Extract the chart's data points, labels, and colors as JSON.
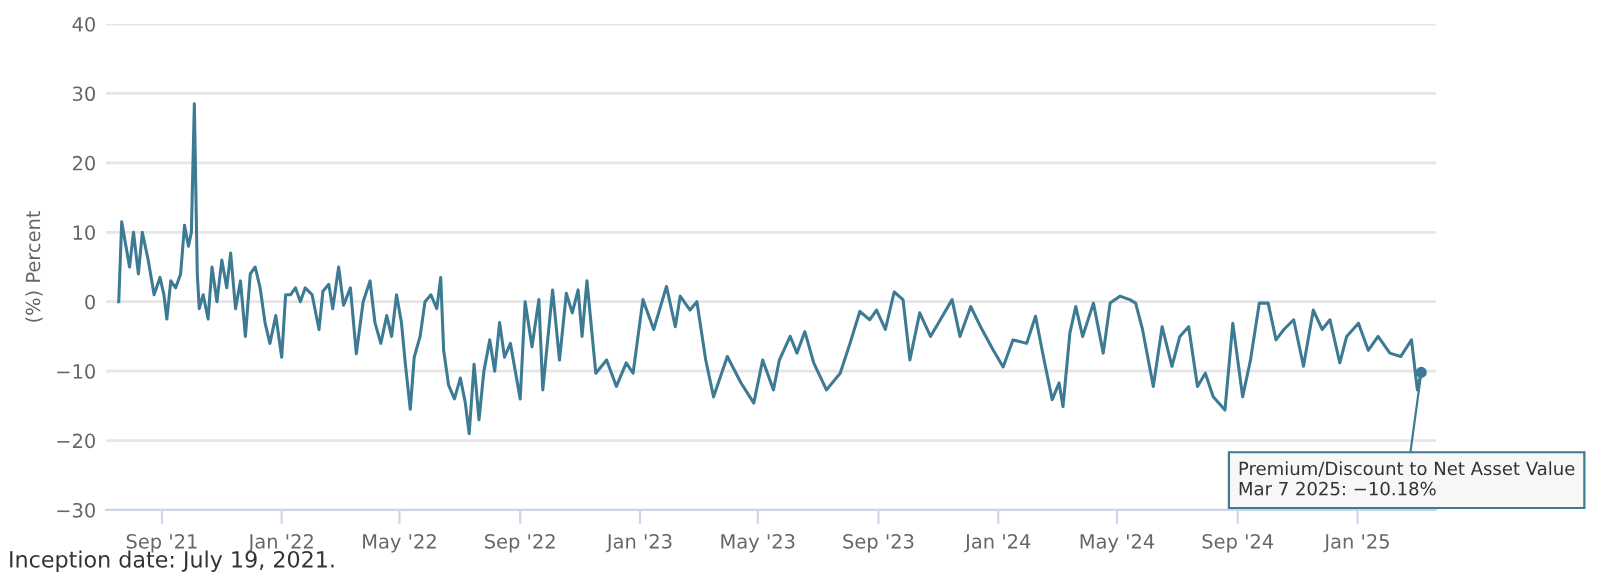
{
  "chart_data": {
    "type": "line",
    "ylabel": "(%) Percent",
    "annotations": [
      {
        "text": "Premium/Discount to Net Asset Value\nMar 7 2025: −10.18%",
        "x": "2025-03-07",
        "y": -10.18
      },
      "Inception date: July 19, 2021."
    ],
    "xlim": [
      "2021-07-06",
      "2025-03-22"
    ],
    "xticks": [
      {
        "value": "2021-09-01",
        "label": "Sep '21"
      },
      {
        "value": "2022-01-01",
        "label": "Jan '22"
      },
      {
        "value": "2022-05-01",
        "label": "May '22"
      },
      {
        "value": "2022-09-01",
        "label": "Sep '22"
      },
      {
        "value": "2023-01-01",
        "label": "Jan '23"
      },
      {
        "value": "2023-05-01",
        "label": "May '23"
      },
      {
        "value": "2023-09-01",
        "label": "Sep '23"
      },
      {
        "value": "2024-01-01",
        "label": "Jan '24"
      },
      {
        "value": "2024-05-01",
        "label": "May '24"
      },
      {
        "value": "2024-09-01",
        "label": "Sep '24"
      },
      {
        "value": "2025-01-01",
        "label": "Jan '25"
      }
    ],
    "ylim": [
      -30,
      40
    ],
    "yticks": [
      {
        "value": -30,
        "label": "−30"
      },
      {
        "value": -20,
        "label": "−20"
      },
      {
        "value": -10,
        "label": "−10"
      },
      0,
      10,
      20,
      30,
      40
    ],
    "grid": "y",
    "legend": false,
    "marker": "none",
    "line_style": "solid",
    "series": [
      {
        "color": "#3d7a94",
        "x": [
          "2021-07-19",
          "2021-07-22",
          "2021-07-30",
          "2021-08-03",
          "2021-08-08",
          "2021-08-12",
          "2021-08-18",
          "2021-08-24",
          "2021-08-30",
          "2021-09-03",
          "2021-09-06",
          "2021-09-10",
          "2021-09-15",
          "2021-09-20",
          "2021-09-24",
          "2021-09-28",
          "2021-10-01",
          "2021-10-04",
          "2021-10-07",
          "2021-10-09",
          "2021-10-13",
          "2021-10-18",
          "2021-10-22",
          "2021-10-27",
          "2021-11-01",
          "2021-11-06",
          "2021-11-10",
          "2021-11-15",
          "2021-11-20",
          "2021-11-25",
          "2021-11-30",
          "2021-12-05",
          "2021-12-10",
          "2021-12-15",
          "2021-12-20",
          "2021-12-26",
          "2022-01-01",
          "2022-01-05",
          "2022-01-10",
          "2022-01-15",
          "2022-01-20",
          "2022-01-25",
          "2022-02-01",
          "2022-02-08",
          "2022-02-12",
          "2022-02-18",
          "2022-02-22",
          "2022-02-28",
          "2022-03-05",
          "2022-03-12",
          "2022-03-18",
          "2022-03-25",
          "2022-04-01",
          "2022-04-06",
          "2022-04-12",
          "2022-04-18",
          "2022-04-23",
          "2022-04-28",
          "2022-05-03",
          "2022-05-07",
          "2022-05-12",
          "2022-05-16",
          "2022-05-22",
          "2022-05-27",
          "2022-06-02",
          "2022-06-08",
          "2022-06-12",
          "2022-06-15",
          "2022-06-20",
          "2022-06-26",
          "2022-07-02",
          "2022-07-07",
          "2022-07-11",
          "2022-07-16",
          "2022-07-21",
          "2022-07-26",
          "2022-08-01",
          "2022-08-06",
          "2022-08-11",
          "2022-08-16",
          "2022-08-22",
          "2022-08-27",
          "2022-09-01",
          "2022-09-06",
          "2022-09-13",
          "2022-09-20",
          "2022-09-24",
          "2022-10-04",
          "2022-10-11",
          "2022-10-18",
          "2022-10-24",
          "2022-10-30",
          "2022-11-03",
          "2022-11-08",
          "2022-11-17",
          "2022-11-28",
          "2022-12-08",
          "2022-12-18",
          "2022-12-25",
          "2023-01-04",
          "2023-01-15",
          "2023-01-28",
          "2023-02-06",
          "2023-02-11",
          "2023-02-21",
          "2023-02-28",
          "2023-03-09",
          "2023-03-17",
          "2023-03-31",
          "2023-04-14",
          "2023-04-27",
          "2023-05-06",
          "2023-05-17",
          "2023-05-23",
          "2023-06-03",
          "2023-06-10",
          "2023-06-18",
          "2023-06-27",
          "2023-07-10",
          "2023-07-24",
          "2023-08-03",
          "2023-08-13",
          "2023-08-23",
          "2023-08-30",
          "2023-09-08",
          "2023-09-17",
          "2023-09-26",
          "2023-10-03",
          "2023-10-13",
          "2023-10-24",
          "2023-11-03",
          "2023-11-15",
          "2023-11-23",
          "2023-12-04",
          "2023-12-14",
          "2023-12-27",
          "2024-01-06",
          "2024-01-16",
          "2024-01-30",
          "2024-02-08",
          "2024-02-16",
          "2024-02-25",
          "2024-03-03",
          "2024-03-07",
          "2024-03-14",
          "2024-03-20",
          "2024-03-27",
          "2024-04-07",
          "2024-04-17",
          "2024-04-24",
          "2024-05-04",
          "2024-05-14",
          "2024-05-20",
          "2024-05-27",
          "2024-06-07",
          "2024-06-16",
          "2024-06-26",
          "2024-07-04",
          "2024-07-13",
          "2024-07-22",
          "2024-07-30",
          "2024-08-07",
          "2024-08-19",
          "2024-08-27",
          "2024-09-06",
          "2024-09-14",
          "2024-09-23",
          "2024-10-02",
          "2024-10-10",
          "2024-10-18",
          "2024-10-28",
          "2024-11-07",
          "2024-11-17",
          "2024-11-26",
          "2024-12-04",
          "2024-12-14",
          "2024-12-21",
          "2025-01-02",
          "2025-01-12",
          "2025-01-22",
          "2025-02-03",
          "2025-02-14",
          "2025-02-25",
          "2025-03-03",
          "2025-03-07"
        ],
        "values": [
          0,
          11.5,
          5,
          10,
          4,
          10,
          6,
          1,
          3.5,
          1,
          -2.5,
          3,
          2,
          4,
          11,
          8,
          10,
          28.5,
          4,
          -1,
          1,
          -2.5,
          5,
          0,
          6,
          2,
          7,
          -1,
          3,
          -5,
          4,
          5,
          2,
          -3,
          -6,
          -2,
          -8,
          1,
          1,
          2,
          0,
          2,
          1,
          -4,
          1.5,
          2.5,
          -1,
          5,
          -0.5,
          2,
          -7.5,
          0,
          3,
          -3,
          -6,
          -2,
          -5,
          1,
          -3,
          -9,
          -15.5,
          -8,
          -5,
          0,
          1,
          -1,
          3.5,
          -7,
          -12,
          -14,
          -11,
          -14.5,
          -19,
          -9,
          -17,
          -10,
          -5.5,
          -10,
          -3,
          -8,
          -6,
          -10,
          -14,
          0,
          -6.5,
          0.3,
          -12.7,
          1.7,
          -8.4,
          1.2,
          -1.6,
          1.7,
          -5,
          3,
          -10.3,
          -8.4,
          -12.2,
          -8.8,
          -10.3,
          0.3,
          -4,
          2.2,
          -3.6,
          0.8,
          -1.2,
          0,
          -8.4,
          -13.7,
          -7.9,
          -11.7,
          -14.6,
          -8.4,
          -12.7,
          -8.4,
          -5,
          -7.4,
          -4.3,
          -8.8,
          -12.7,
          -10.3,
          -6,
          -1.4,
          -2.6,
          -1.2,
          -4,
          1.4,
          0.3,
          -8.4,
          -1.6,
          -5,
          -2.6,
          0.3,
          -5,
          -0.7,
          -3.6,
          -7,
          -9.4,
          -5.5,
          -6,
          -2.1,
          -7.9,
          -14.1,
          -11.7,
          -15.1,
          -4.5,
          -0.7,
          -5,
          -0.2,
          -7.4,
          -0.2,
          0.8,
          0.3,
          -0.2,
          -4,
          -12.2,
          -3.6,
          -9.3,
          -5,
          -3.6,
          -12.2,
          -10.3,
          -13.7,
          -15.6,
          -3.1,
          -13.7,
          -8.4,
          -0.2,
          -0.2,
          -5.5,
          -4,
          -2.6,
          -9.3,
          -1.2,
          -4,
          -2.6,
          -8.8,
          -5,
          -3.1,
          -7,
          -5,
          -7.4,
          -7.9,
          -5.5,
          -12.7,
          -10.18
        ]
      }
    ]
  }
}
